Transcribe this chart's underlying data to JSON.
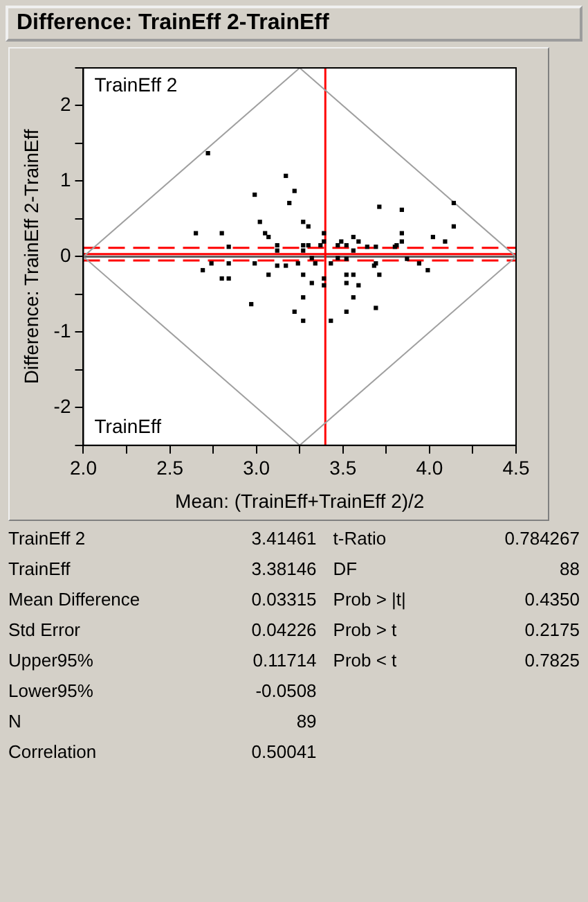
{
  "chart_data": {
    "type": "scatter",
    "title": "Difference: TrainEff 2-TrainEff",
    "xlabel": "Mean: (TrainEff+TrainEff 2)/2",
    "ylabel": "Difference: TrainEff 2-TrainEff",
    "xlim": [
      2,
      4.5
    ],
    "xticks": [
      {
        "value": 2,
        "label": "2.0"
      },
      {
        "value": 2.25,
        "label": null
      },
      {
        "value": 2.5,
        "label": "2.5"
      },
      {
        "value": 2.75,
        "label": null
      },
      {
        "value": 3,
        "label": "3.0"
      },
      {
        "value": 3.25,
        "label": null
      },
      {
        "value": 3.5,
        "label": "3.5"
      },
      {
        "value": 3.75,
        "label": null
      },
      {
        "value": 4,
        "label": "4.0"
      },
      {
        "value": 4.25,
        "label": null
      },
      {
        "value": 4.5,
        "label": "4.5"
      }
    ],
    "ylim": [
      -2.5,
      2.5
    ],
    "yticks": [
      {
        "value": -2.5,
        "label": null
      },
      -2,
      {
        "value": -1.5,
        "label": null
      },
      -1,
      {
        "value": -0.5,
        "label": null
      },
      0,
      {
        "value": 0.5,
        "label": null
      },
      1,
      {
        "value": 1.5,
        "label": null
      },
      2,
      {
        "value": 2.5,
        "label": null
      }
    ],
    "grid": false,
    "legend": false,
    "series": [
      {
        "type": "line",
        "color": "#a0a0a0",
        "marker": "none",
        "x": [
          2,
          3.25,
          4.5
        ],
        "values": [
          0,
          2.5,
          0
        ]
      },
      {
        "type": "line",
        "color": "#a0a0a0",
        "marker": "none",
        "x": [
          2,
          3.25,
          4.5
        ],
        "values": [
          0,
          -2.5,
          0
        ]
      },
      {
        "type": "scatter",
        "color": "#000000",
        "marker": "square",
        "x": [
          2.72,
          2.65,
          2.69,
          2.74,
          2.8,
          2.8,
          2.84,
          2.84,
          2.84,
          2.97,
          2.99,
          2.99,
          3.02,
          3.05,
          3.07,
          3.07,
          3.12,
          3.12,
          3.12,
          3.17,
          3.17,
          3.19,
          3.22,
          3.22,
          3.24,
          3.27,
          3.3,
          3.27,
          3.27,
          3.27,
          3.27,
          3.27,
          3.3,
          3.32,
          3.32,
          3.34,
          3.37,
          3.39,
          3.39,
          3.39,
          3.39,
          3.43,
          3.43,
          3.47,
          3.47,
          3.49,
          3.52,
          3.52,
          3.52,
          3.52,
          3.52,
          3.56,
          3.56,
          3.56,
          3.56,
          3.59,
          3.59,
          3.64,
          3.69,
          3.68,
          3.69,
          3.69,
          3.71,
          3.71,
          3.8,
          3.81,
          3.84,
          3.84,
          3.84,
          3.87,
          3.94,
          3.99,
          4.02,
          4.09,
          4.14,
          4.14
        ],
        "values": [
          1.37,
          0.31,
          -0.18,
          -0.09,
          0.31,
          -0.29,
          0.13,
          -0.09,
          -0.29,
          -0.63,
          0.82,
          -0.09,
          0.46,
          0.31,
          0.26,
          -0.24,
          0.15,
          0.08,
          -0.12,
          -0.12,
          1.07,
          0.71,
          0.87,
          -0.73,
          -0.09,
          0.46,
          0.4,
          0.15,
          0.08,
          -0.24,
          -0.54,
          -0.85,
          0.15,
          -0.02,
          -0.35,
          -0.09,
          0.15,
          0.31,
          0.2,
          -0.29,
          -0.38,
          -0.85,
          -0.09,
          0.15,
          -0.02,
          0.2,
          0.15,
          -0.03,
          -0.24,
          -0.35,
          -0.73,
          0.26,
          0.08,
          -0.24,
          -0.54,
          0.2,
          -0.38,
          0.13,
          0.13,
          -0.12,
          -0.09,
          -0.68,
          0.66,
          -0.24,
          0.13,
          0.15,
          0.62,
          0.31,
          0.2,
          -0.03,
          -0.09,
          -0.18,
          0.26,
          0.2,
          0.4,
          0.71
        ]
      }
    ],
    "ref_lines": [
      {
        "axis": "y",
        "value": 0,
        "color": "#606060",
        "line_style": "solid"
      },
      {
        "axis": "y",
        "value": 0.03315,
        "color": "#ff0000",
        "line_style": "solid"
      },
      {
        "axis": "y",
        "value": 0.11714,
        "color": "#ff0000",
        "line_style": "dashed"
      },
      {
        "axis": "y",
        "value": -0.0508,
        "color": "#ff0000",
        "line_style": "dashed"
      },
      {
        "axis": "x",
        "value": 3.39804,
        "color": "#ff0000",
        "line_style": "solid"
      }
    ],
    "annotations": [
      "TrainEff 2",
      "TrainEff",
      "TrainEff 2",
      "3.41461",
      "TrainEff",
      "3.38146",
      "Mean Difference",
      "0.03315",
      "Std Error",
      "0.04226",
      "Upper95%",
      "0.11714",
      "Lower95%",
      "-0.0508",
      "N",
      "89",
      "Correlation",
      "0.50041",
      "t-Ratio",
      "0.784267",
      "DF",
      "88",
      "Prob > |t|",
      "0.4350",
      "Prob > t",
      "0.2175",
      "Prob < t",
      "0.7825"
    ]
  }
}
